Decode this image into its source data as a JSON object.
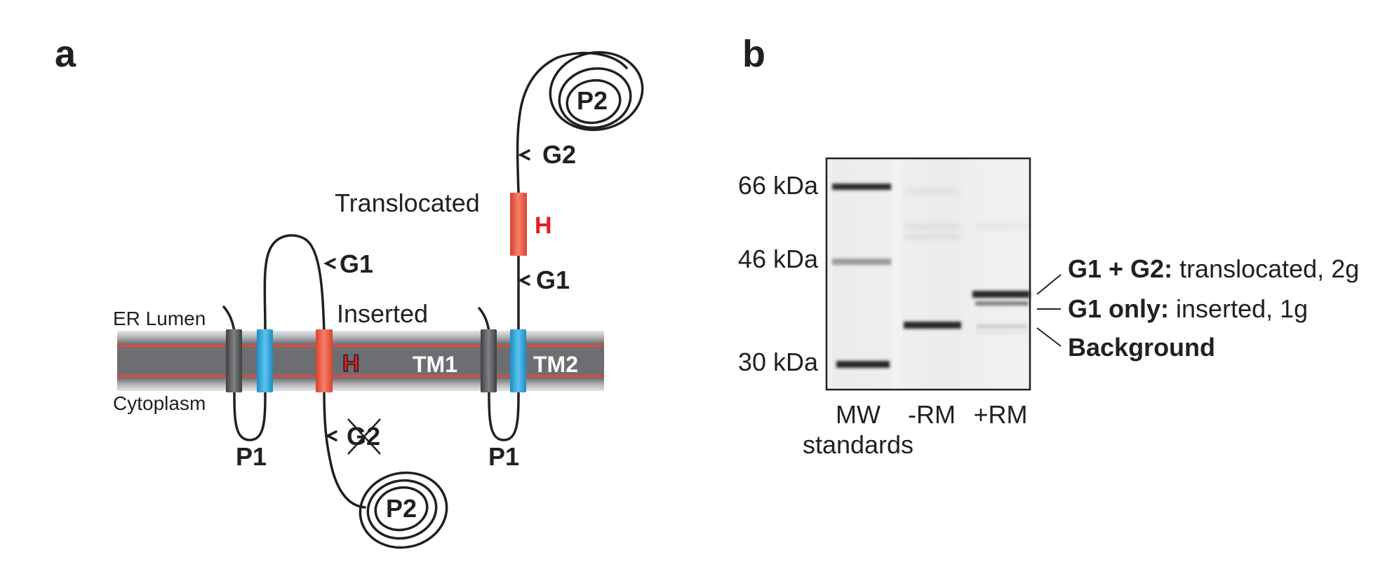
{
  "panel_a": {
    "label": "a",
    "er_lumen": "ER Lumen",
    "cytoplasm": "Cytoplasm",
    "tm1": "TM1",
    "tm2": "TM2",
    "h_inserted": "H",
    "h_translocated": "H",
    "inserted": "Inserted",
    "translocated": "Translocated",
    "g1_inserted": "G1",
    "g2_inserted": "G2",
    "g1_translocated": "G1",
    "g2_translocated": "G2",
    "p1_left": "P1",
    "p1_right": "P1",
    "p2_bottom": "P2",
    "p2_top": "P2"
  },
  "panel_b": {
    "label": "b",
    "mw_markers": [
      "66 kDa",
      "46 kDa",
      "30 kDa"
    ],
    "lanes": {
      "mw": "MW",
      "mw_sub": "standards",
      "minus_rm": "-RM",
      "plus_rm": "+RM"
    },
    "annotations": [
      {
        "bold": "G1 + G2:",
        "rest": " translocated, 2g"
      },
      {
        "bold": "G1 only:",
        "rest": " inserted, 1g"
      },
      {
        "bold": "Background",
        "rest": ""
      }
    ]
  },
  "colors": {
    "membrane_dark": "#6d6e71",
    "membrane_stripe": "#e8463a",
    "tm_gray": "#58595b",
    "tm_blue": "#29a8e0",
    "tm_red": "#ee5a45",
    "h_red": "#e31e24"
  }
}
